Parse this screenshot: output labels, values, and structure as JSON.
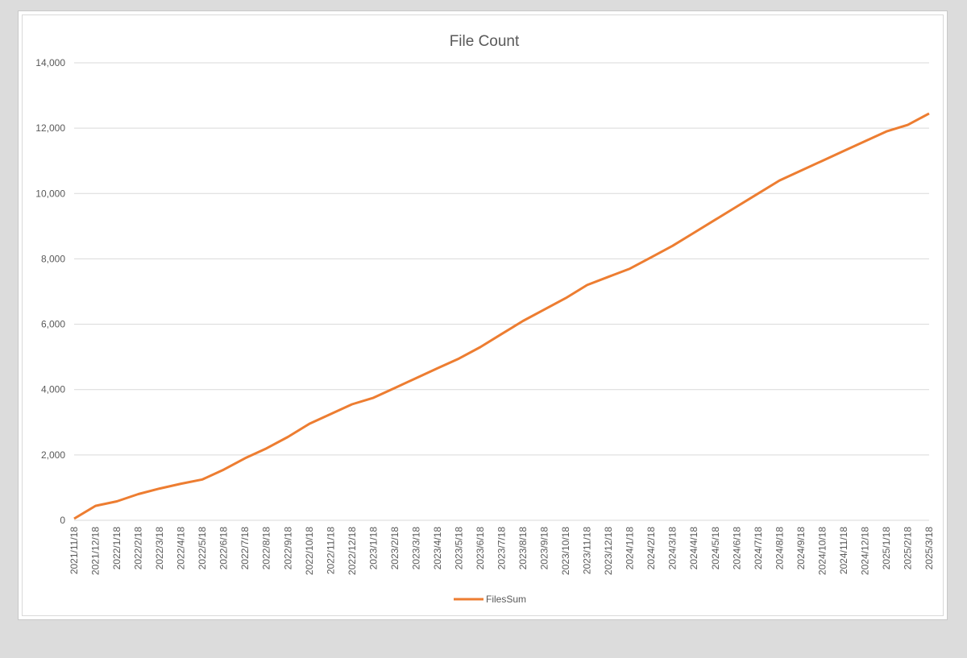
{
  "chart_data": {
    "type": "line",
    "title": "File Count",
    "xlabel": "",
    "ylabel": "",
    "ylim": [
      0,
      14000
    ],
    "yticks": [
      0,
      2000,
      4000,
      6000,
      8000,
      10000,
      12000,
      14000
    ],
    "ytick_labels": [
      "0",
      "2,000",
      "4,000",
      "6,000",
      "8,000",
      "10,000",
      "12,000",
      "14,000"
    ],
    "grid": true,
    "legend": "bottom",
    "line_color": "#ED7D31",
    "grid_color": "#d9d9d9",
    "x_tick_labels": [
      "2021/11/18",
      "2021/12/18",
      "2022/1/18",
      "2022/2/18",
      "2022/3/18",
      "2022/4/18",
      "2022/5/18",
      "2022/6/18",
      "2022/7/18",
      "2022/8/18",
      "2022/9/18",
      "2022/10/18",
      "2022/11/18",
      "2022/12/18",
      "2023/1/18",
      "2023/2/18",
      "2023/3/18",
      "2023/4/18",
      "2023/5/18",
      "2023/6/18",
      "2023/7/18",
      "2023/8/18",
      "2023/9/18",
      "2023/10/18",
      "2023/11/18",
      "2023/12/18",
      "2024/1/18",
      "2024/2/18",
      "2024/3/18",
      "2024/4/18",
      "2024/5/18",
      "2024/6/18",
      "2024/7/18",
      "2024/8/18",
      "2024/9/18",
      "2024/10/18",
      "2024/11/18",
      "2024/12/18",
      "2025/1/18",
      "2025/2/18",
      "2025/3/18"
    ],
    "series": [
      {
        "name": "FilesSum",
        "x": [
          "2021/11/18",
          "2021/12/18",
          "2022/1/18",
          "2022/2/18",
          "2022/3/18",
          "2022/4/18",
          "2022/5/18",
          "2022/6/18",
          "2022/7/18",
          "2022/8/18",
          "2022/9/18",
          "2022/10/18",
          "2022/11/18",
          "2022/12/18",
          "2023/1/18",
          "2023/2/18",
          "2023/3/18",
          "2023/4/18",
          "2023/5/18",
          "2023/6/18",
          "2023/7/18",
          "2023/8/18",
          "2023/9/18",
          "2023/10/18",
          "2023/11/18",
          "2023/12/18",
          "2024/1/18",
          "2024/2/18",
          "2024/3/18",
          "2024/4/18",
          "2024/5/18",
          "2024/6/18",
          "2024/7/18",
          "2024/8/18",
          "2024/9/18",
          "2024/10/18",
          "2024/11/18",
          "2024/12/18",
          "2025/1/18",
          "2025/2/18",
          "2025/3/18"
        ],
        "values": [
          50,
          440,
          580,
          800,
          970,
          1120,
          1250,
          1550,
          1900,
          2200,
          2550,
          2950,
          3250,
          3550,
          3750,
          4050,
          4350,
          4650,
          4950,
          5300,
          5700,
          6100,
          6450,
          6800,
          7200,
          7450,
          7700,
          8050,
          8400,
          8800,
          9200,
          9600,
          10000,
          10400,
          10700,
          11000,
          11300,
          11600,
          11900,
          12100,
          12450
        ]
      }
    ]
  }
}
